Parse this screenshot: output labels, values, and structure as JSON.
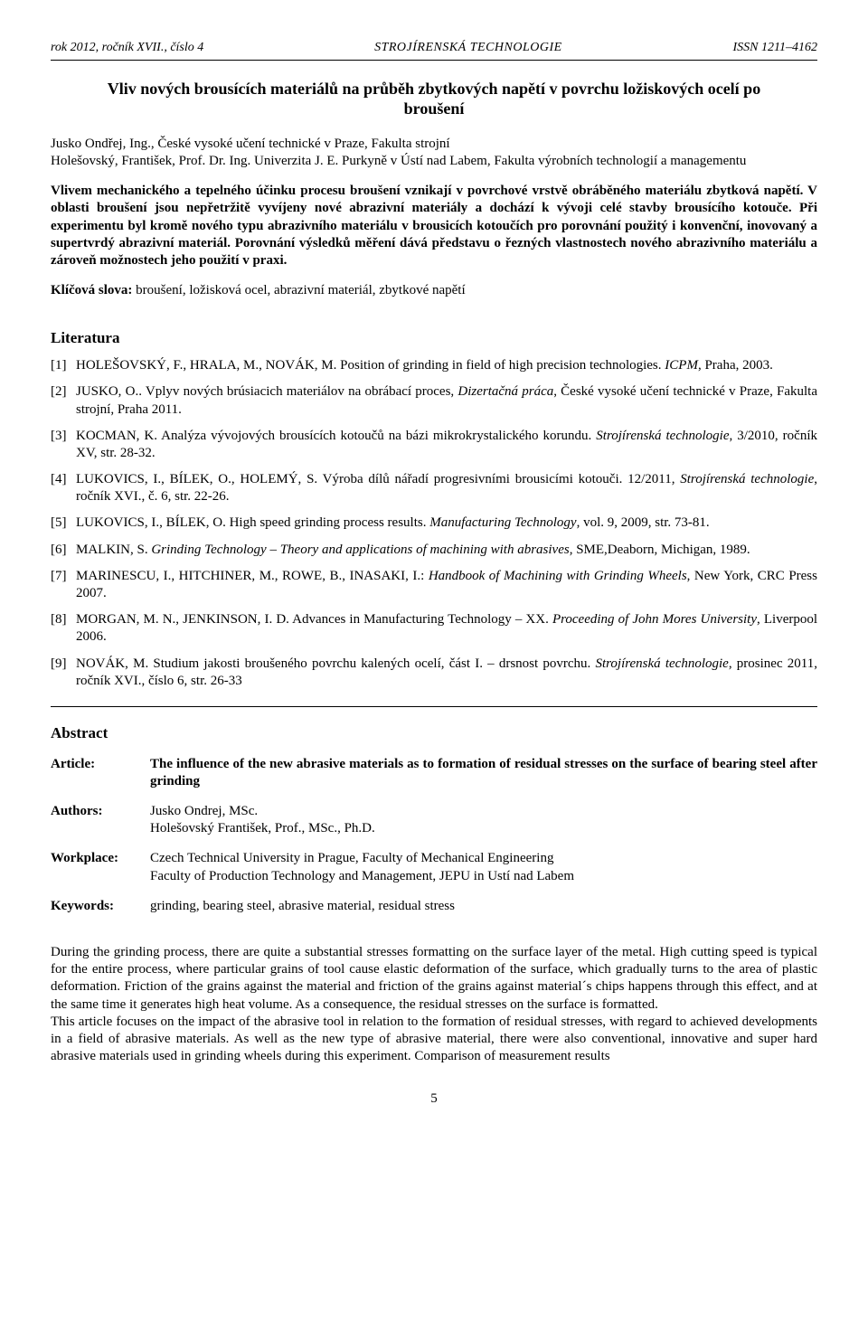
{
  "header": {
    "left": "rok 2012, ročník XVII., číslo 4",
    "center": "STROJÍRENSKÁ TECHNOLOGIE",
    "right": "ISSN 1211–4162"
  },
  "title_cz": "Vliv nových brousících materiálů na průběh zbytkových napětí v povrchu ložiskových ocelí po broušení",
  "authors_block": "Jusko Ondřej, Ing., České vysoké učení technické v Praze, Fakulta strojní\nHolešovský, František, Prof. Dr. Ing. Univerzita J. E. Purkyně v Ústí nad Labem, Fakulta výrobních technologií a managementu",
  "abstract_cz": "Vlivem mechanického a tepelného účinku procesu broušení vznikají v povrchové vrstvě obráběného materiálu zbytková napětí. V oblasti broušení jsou nepřetržitě vyvíjeny nové abrazivní materiály a dochází k vývoji celé stavby brousícího kotouče. Při experimentu byl kromě nového typu abrazivního materiálu v brousicích kotoučích pro porovnání použitý i konvenční, inovovaný a supertvrdý abrazivní materiál. Porovnání výsledků měření dává představu o řezných vlastnostech nového abrazivního materiálu a zároveň možnostech jeho použití v praxi.",
  "keywords_cz_label": "Klíčová slova:",
  "keywords_cz": " broušení, ložisková ocel, abrazivní materiál, zbytkové napětí",
  "literature_heading": "Literatura",
  "references": [
    {
      "n": "[1]",
      "html": "HOLEŠOVSKÝ, F., HRALA, M., NOVÁK, M. Position of grinding in field of high precision technologies. <em>ICPM</em>, Praha, 2003."
    },
    {
      "n": "[2]",
      "html": "JUSKO, O.. Vplyv nových brúsiacich materiálov na obrábací proces, <em>Dizertačná práca</em>, České vysoké učení technické v Praze, Fakulta strojní, Praha 2011."
    },
    {
      "n": "[3]",
      "html": "KOCMAN, K. Analýza vývojových brousících kotoučů na bázi mikrokrystalického korundu. <em>Strojírenská technologie</em>, 3/2010, ročník XV, str. 28-32."
    },
    {
      "n": "[4]",
      "html": "LUKOVICS, I., BÍLEK, O., HOLEMÝ, S. Výroba dílů nářadí progresivními brousicími kotouči. 12/2011, <em>Strojírenská technologie</em>, ročník XVI., č. 6, str. 22-26."
    },
    {
      "n": "[5]",
      "html": "LUKOVICS, I., BÍLEK, O. High speed grinding process results. <em>Manufacturing Technology</em>, vol. 9, 2009, str. 73-81."
    },
    {
      "n": "[6]",
      "html": "MALKIN, S. <em>Grinding Technology – Theory and applications of machining with abrasives</em>, SME,Deaborn, Michigan, 1989."
    },
    {
      "n": "[7]",
      "html": "MARINESCU, I., HITCHINER, M., ROWE, B., INASAKI, I.: <em>Handbook of Machining with Grinding Wheels</em>, New York, CRC Press 2007."
    },
    {
      "n": "[8]",
      "html": "MORGAN, M. N., JENKINSON, I. D. Advances in Manufacturing Technology – XX.  <em>Proceeding of John Mores University</em>, Liverpool 2006."
    },
    {
      "n": "[9]",
      "html": "NOVÁK, M. Studium jakosti broušeného povrchu kalených ocelí, část I. – drsnost povrchu. <em>Strojírenská technologie</em>, prosinec 2011, ročník XVI., číslo 6, str. 26-33"
    }
  ],
  "abstract_en_heading": "Abstract",
  "meta": {
    "article_label": "Article:",
    "article_value": "The influence of the new abrasive materials as to formation of residual stresses on the    surface of bearing steel after grinding",
    "authors_label": "Authors:",
    "authors_value": "Jusko Ondrej, MSc.\nHolešovský František, Prof., MSc., Ph.D.",
    "workplace_label": "Workplace:",
    "workplace_value": "Czech Technical University in Prague, Faculty of Mechanical Engineering\nFaculty of Production Technology and Management, JEPU in Ustí nad Labem",
    "keywords_label": "Keywords:",
    "keywords_value": "grinding, bearing steel, abrasive material, residual stress"
  },
  "en_para1": "During the grinding process, there are quite a substantial stresses formatting on the surface layer of the metal. High cutting speed is typical for the entire process, where particular grains of tool cause elastic deformation of the surface, which gradually turns to the area of plastic deformation. Friction of the grains against the material and friction of the grains against material´s chips happens through this effect, and at the same time it generates high heat volume. As a consequence, the residual stresses on the surface is formatted.",
  "en_para2": "This article focuses on the impact of the abrasive tool in relation to the formation of residual stresses, with regard to achieved developments in a field of abrasive materials. As well as the new type of abrasive material, there were also conventional, innovative and super hard abrasive materials used in grinding wheels during this experiment. Comparison of measurement results",
  "page_number": "5"
}
